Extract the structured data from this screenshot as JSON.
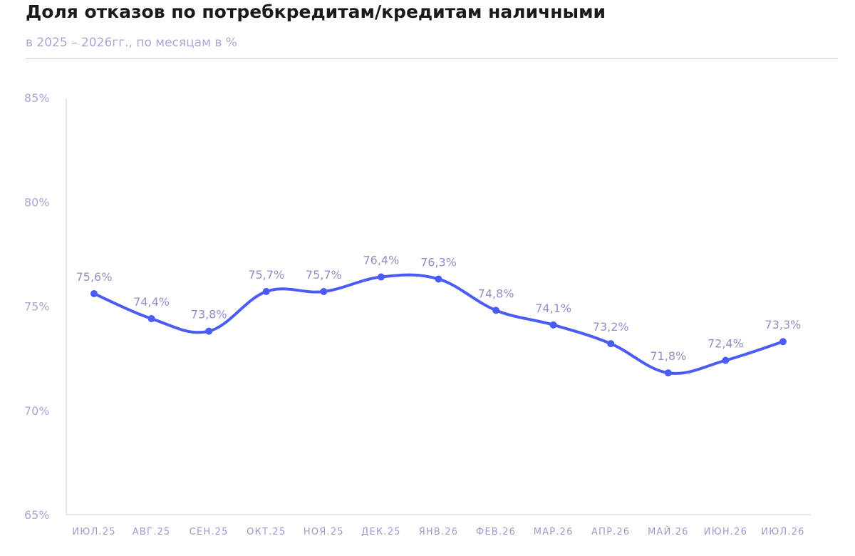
{
  "header": {
    "title": "Доля отказов по потребкредитам/кредитам наличными",
    "subtitle": "в 2025 – 2026гг., по месяцам в %"
  },
  "chart_data": {
    "type": "line",
    "title": "Доля отказов по потребкредитам/кредитам наличными",
    "subtitle": "в 2025 – 2026гг., по месяцам в %",
    "xlabel": "",
    "ylabel": "",
    "categories": [
      "ИЮЛ.25",
      "АВГ.25",
      "СЕН.25",
      "ОКТ.25",
      "НОЯ.25",
      "ДЕК.25",
      "ЯНВ.26",
      "ФЕВ.26",
      "МАР.26",
      "АПР.26",
      "МАЙ.26",
      "ИЮН.26",
      "ИЮЛ.26"
    ],
    "series": [
      {
        "values": [
          75.6,
          74.4,
          73.8,
          75.7,
          75.7,
          76.4,
          76.3,
          74.8,
          74.1,
          73.2,
          71.8,
          72.4,
          73.3
        ],
        "labels": [
          "75,6%",
          "74,4%",
          "73,8%",
          "75,7%",
          "75,7%",
          "76,4%",
          "76,3%",
          "74,8%",
          "74,1%",
          "73,2%",
          "71,8%",
          "72,4%",
          "73,3%"
        ]
      }
    ],
    "ylim": [
      65,
      85
    ],
    "yticks": [
      65,
      70,
      75,
      80,
      85
    ],
    "ytick_labels": [
      "65%",
      "70%",
      "75%",
      "80%",
      "85%"
    ],
    "grid": false,
    "legend": "none",
    "colors": {
      "line": "#4a5cf5",
      "axis": "#c9cae6",
      "text_muted": "#a6a8d6"
    }
  }
}
